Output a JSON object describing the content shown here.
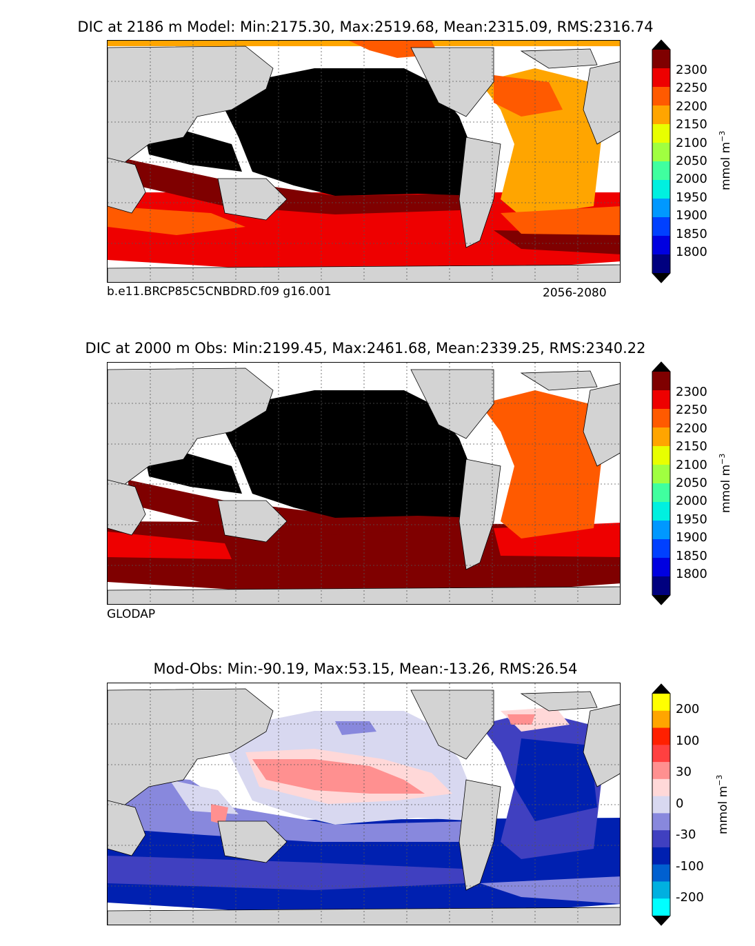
{
  "panels": [
    {
      "title": "DIC at 2186 m Model: Min:2175.30, Max:2519.68, Mean:2315.09, RMS:2316.74",
      "caption_left": "b.e11.BRCP85C5CNBDRD.f09 g16.001",
      "caption_right": "2056-2080",
      "colorbar": {
        "ticks": [
          "2300",
          "2250",
          "2200",
          "2150",
          "2100",
          "2050",
          "2000",
          "1950",
          "1900",
          "1850",
          "1800"
        ],
        "colors": [
          "#7f0000",
          "#ee0000",
          "#ff5a00",
          "#ffa500",
          "#e8ff00",
          "#a0ff40",
          "#40ff9f",
          "#00f0e0",
          "#0098ff",
          "#0040ff",
          "#0000e0",
          "#00007f"
        ],
        "over_color": "#000000",
        "under_color": "#000000",
        "unit": "mmol m",
        "unit_exp": "−3"
      }
    },
    {
      "title": "DIC at 2000 m Obs: Min:2199.45, Max:2461.68, Mean:2339.25, RMS:2340.22",
      "caption_left": "GLODAP",
      "caption_right": "",
      "colorbar": {
        "ticks": [
          "2300",
          "2250",
          "2200",
          "2150",
          "2100",
          "2050",
          "2000",
          "1950",
          "1900",
          "1850",
          "1800"
        ],
        "colors": [
          "#7f0000",
          "#ee0000",
          "#ff5a00",
          "#ffa500",
          "#e8ff00",
          "#a0ff40",
          "#40ff9f",
          "#00f0e0",
          "#0098ff",
          "#0040ff",
          "#0000e0",
          "#00007f"
        ],
        "over_color": "#000000",
        "under_color": "#000000",
        "unit": "mmol m",
        "unit_exp": "−3"
      }
    },
    {
      "title": "Mod-Obs: Min:-90.19, Max:53.15, Mean:-13.26, RMS:26.54",
      "caption_left": "",
      "caption_right": "",
      "colorbar": {
        "ticks": [
          "200",
          "100",
          "30",
          "0",
          "-30",
          "-100",
          "-200"
        ],
        "colors": [
          "#ffff00",
          "#ffa500",
          "#ff2000",
          "#ff4040",
          "#ff9090",
          "#ffd8d8",
          "#d8d8f0",
          "#8888dd",
          "#4040c0",
          "#0020b0",
          "#0060d0",
          "#00b0e0",
          "#00ffff"
        ],
        "over_color": "#000000",
        "under_color": "#000000",
        "unit": "mmol m",
        "unit_exp": "−3"
      }
    }
  ],
  "colors": {
    "land": "#d3d3d3",
    "pacific_deep": "#000000",
    "diff_pos": "#ff9090",
    "diff_neg": "#0020b0"
  }
}
